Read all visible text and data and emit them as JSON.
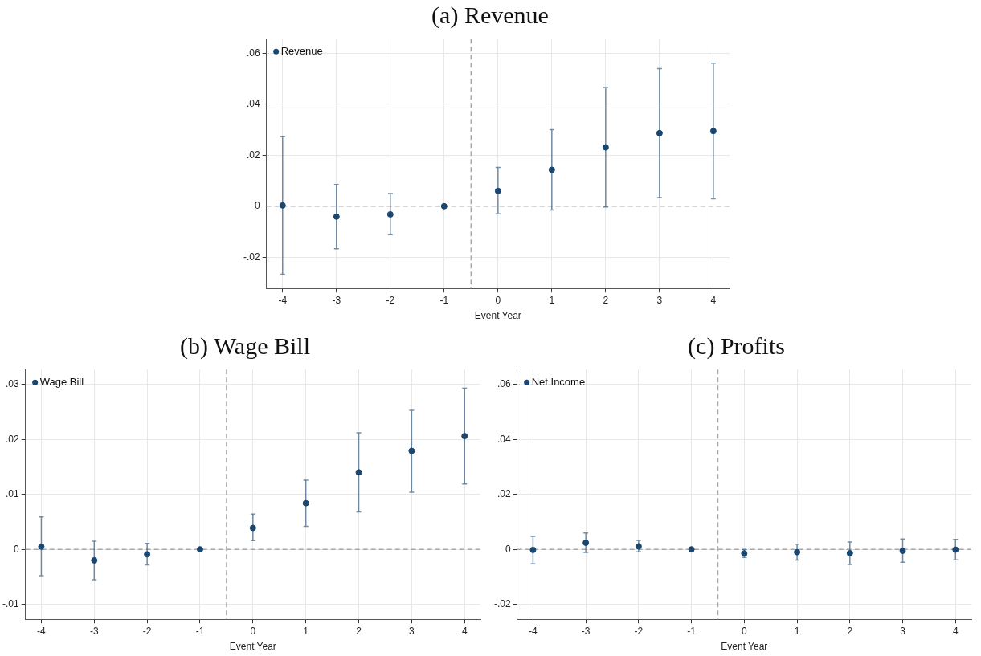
{
  "chart_data": [
    {
      "type": "scatter",
      "title": "(a) Revenue",
      "xlabel": "Event Year",
      "xlim": [
        -4.3,
        4.3
      ],
      "xticks": [
        -4,
        -3,
        -2,
        -1,
        0,
        1,
        2,
        3,
        4
      ],
      "ylim": [
        -0.0323,
        0.0658
      ],
      "yticks": [
        {
          "value": -0.02,
          "label": "-.02"
        },
        {
          "value": 0,
          "label": "0"
        },
        {
          "value": 0.02,
          "label": ".02"
        },
        {
          "value": 0.04,
          "label": ".04"
        },
        {
          "value": 0.06,
          "label": ".06"
        }
      ],
      "grid": true,
      "legend": "top left",
      "marker": "circle",
      "x": [
        -4,
        -3,
        -2,
        -1,
        0,
        1,
        2,
        3,
        4
      ],
      "series": [
        {
          "name": "Revenue",
          "color": "#1a476f",
          "values": [
            0.0003,
            -0.0041,
            -0.0032,
            0,
            0.006,
            0.0143,
            0.0231,
            0.0287,
            0.0295
          ],
          "errors": [
            [
              -0.0267,
              0.0273
            ],
            [
              -0.0167,
              0.0085
            ],
            [
              -0.0112,
              0.005
            ],
            null,
            [
              -0.003,
              0.0152
            ],
            [
              -0.0015,
              0.0301
            ],
            [
              -0.0003,
              0.0466
            ],
            [
              0.0034,
              0.054
            ],
            [
              0.0029,
              0.0562
            ]
          ]
        }
      ],
      "ref_lines": [
        {
          "axis": "x",
          "value": -0.5,
          "color": "#a8a8a8",
          "line_style": "dashed"
        },
        {
          "axis": "y",
          "value": 0,
          "color": "#a8a8a8",
          "line_style": "dashed"
        }
      ]
    },
    {
      "type": "scatter",
      "title": "(b) Wage Bill",
      "xlabel": "Event Year",
      "xlim": [
        -4.3,
        4.3
      ],
      "xticks": [
        -4,
        -3,
        -2,
        -1,
        0,
        1,
        2,
        3,
        4
      ],
      "ylim": [
        -0.0127,
        0.0327
      ],
      "yticks": [
        {
          "value": -0.01,
          "label": "-.01"
        },
        {
          "value": 0,
          "label": "0"
        },
        {
          "value": 0.01,
          "label": ".01"
        },
        {
          "value": 0.02,
          "label": ".02"
        },
        {
          "value": 0.03,
          "label": ".03"
        }
      ],
      "grid": true,
      "legend": "top left",
      "marker": "circle",
      "x": [
        -4,
        -3,
        -2,
        -1,
        0,
        1,
        2,
        3,
        4
      ],
      "series": [
        {
          "name": "Wage Bill",
          "color": "#1a476f",
          "values": [
            0.0005,
            -0.002,
            -0.0009,
            0,
            0.0039,
            0.0084,
            0.014,
            0.0179,
            0.0206
          ],
          "errors": [
            [
              -0.0048,
              0.0059
            ],
            [
              -0.0055,
              0.0015
            ],
            [
              -0.0028,
              0.0011
            ],
            null,
            [
              0.0016,
              0.0064
            ],
            [
              0.0042,
              0.0126
            ],
            [
              0.0068,
              0.0212
            ],
            [
              0.0104,
              0.0253
            ],
            [
              0.0119,
              0.0293
            ]
          ]
        }
      ],
      "ref_lines": [
        {
          "axis": "x",
          "value": -0.5,
          "color": "#a8a8a8",
          "line_style": "dashed"
        },
        {
          "axis": "y",
          "value": 0,
          "color": "#a8a8a8",
          "line_style": "dashed"
        }
      ]
    },
    {
      "type": "scatter",
      "title": "(c) Profits",
      "xlabel": "Event Year",
      "xlim": [
        -4.3,
        4.3
      ],
      "xticks": [
        -4,
        -3,
        -2,
        -1,
        0,
        1,
        2,
        3,
        4
      ],
      "ylim": [
        -0.0254,
        0.0654
      ],
      "yticks": [
        {
          "value": -0.02,
          "label": "-.02"
        },
        {
          "value": 0,
          "label": "0"
        },
        {
          "value": 0.02,
          "label": ".02"
        },
        {
          "value": 0.04,
          "label": ".04"
        },
        {
          "value": 0.06,
          "label": ".06"
        }
      ],
      "grid": true,
      "legend": "top left",
      "marker": "circle",
      "x": [
        -4,
        -3,
        -2,
        -1,
        0,
        1,
        2,
        3,
        4
      ],
      "series": [
        {
          "name": "Net Income",
          "color": "#1a476f",
          "values": [
            -0.0002,
            0.0024,
            0.0011,
            0,
            -0.0015,
            -0.001,
            -0.0014,
            -0.0005,
            -0.0001
          ],
          "errors": [
            [
              -0.0053,
              0.0047
            ],
            [
              -0.0011,
              0.006
            ],
            [
              -0.0009,
              0.0033
            ],
            null,
            [
              -0.0029,
              -0.0001
            ],
            [
              -0.0039,
              0.0019
            ],
            [
              -0.0055,
              0.0027
            ],
            [
              -0.0047,
              0.0038
            ],
            [
              -0.0038,
              0.0036
            ]
          ]
        }
      ],
      "ref_lines": [
        {
          "axis": "x",
          "value": -0.5,
          "color": "#a8a8a8",
          "line_style": "dashed"
        },
        {
          "axis": "y",
          "value": 0,
          "color": "#a8a8a8",
          "line_style": "dashed"
        }
      ]
    }
  ]
}
